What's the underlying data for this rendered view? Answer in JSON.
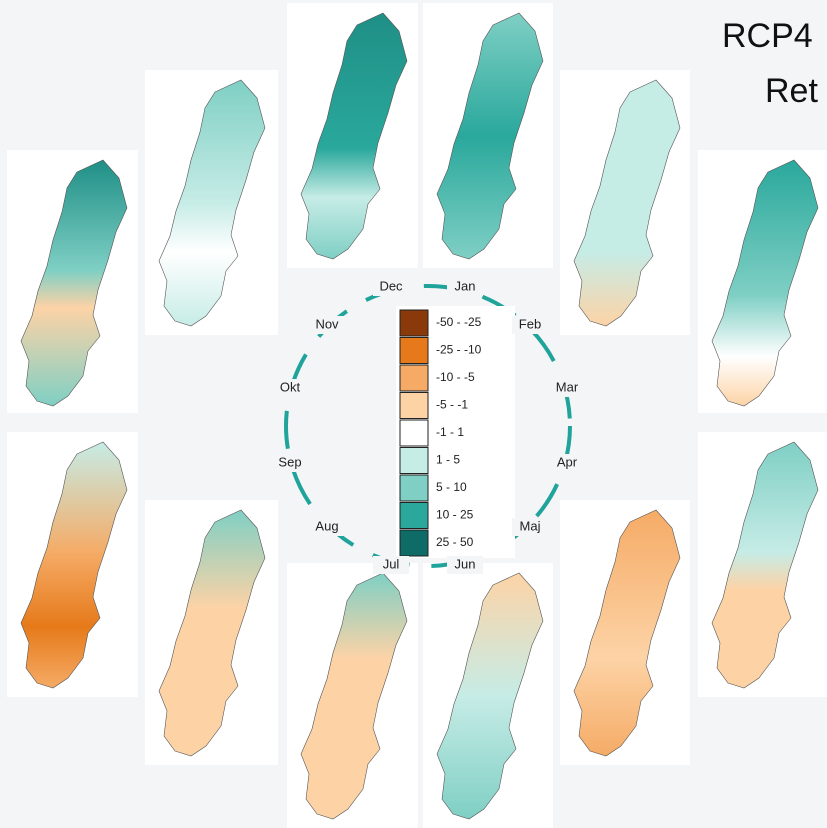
{
  "title_lines": [
    "RCP4",
    "Ret"
  ],
  "months": [
    "Dec",
    "Jan",
    "Feb",
    "Mar",
    "Apr",
    "Maj",
    "Jun",
    "Jul",
    "Aug",
    "Sep",
    "Okt",
    "Nov"
  ],
  "legend": [
    {
      "label": "-50 - -25",
      "color": "#8a3a0a"
    },
    {
      "label": "-25 - -10",
      "color": "#e67a1a"
    },
    {
      "label": "-10 - -5",
      "color": "#f5ab66"
    },
    {
      "label": "-5 - -1",
      "color": "#fdd3a6"
    },
    {
      "label": "-1 - 1",
      "color": "#ffffff"
    },
    {
      "label": "1 - 5",
      "color": "#c6ece6"
    },
    {
      "label": "5 - 10",
      "color": "#7fcfc4"
    },
    {
      "label": "10 - 25",
      "color": "#2aa89c"
    },
    {
      "label": "25 - 50",
      "color": "#0e6b66"
    }
  ]
}
